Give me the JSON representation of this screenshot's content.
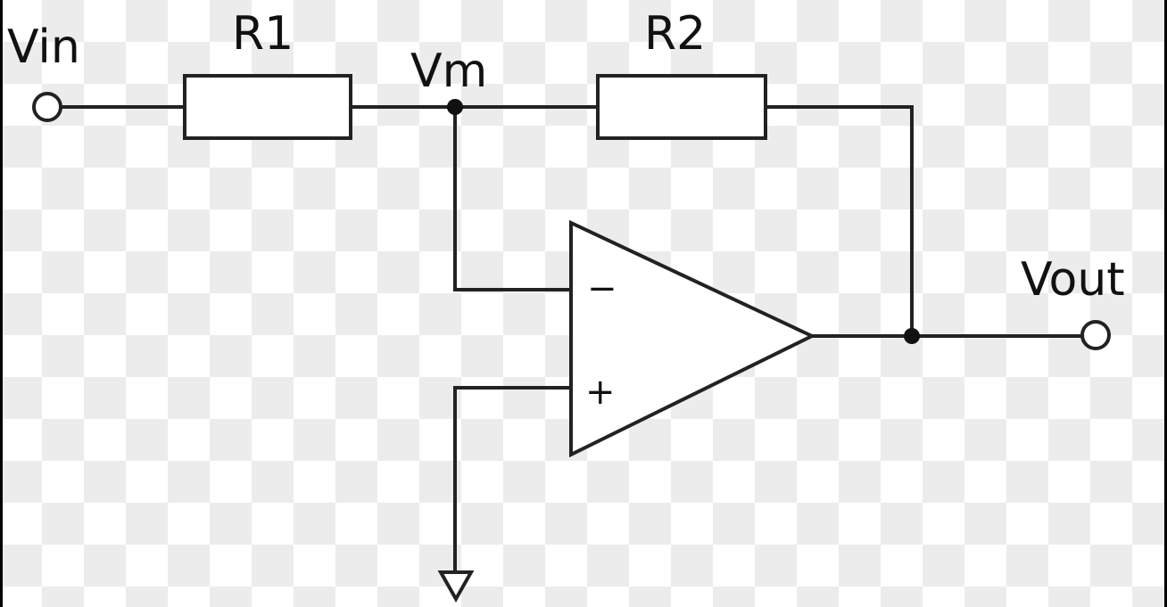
{
  "schematic": {
    "labels": {
      "vin": "Vin",
      "r1": "R1",
      "vm": "Vm",
      "r2": "R2",
      "vout": "Vout"
    },
    "opamp": {
      "inverting": "−",
      "non_inverting": "+"
    },
    "colors": {
      "line": "#222222",
      "checker_light": "#ffffff",
      "checker_dark": "#ececec"
    }
  }
}
